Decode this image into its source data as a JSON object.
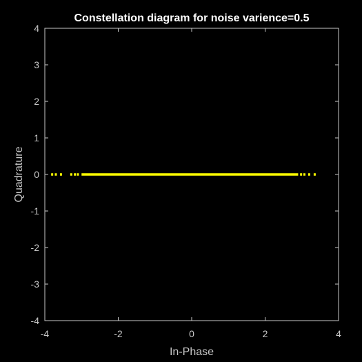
{
  "chart_data": {
    "type": "scatter",
    "title": "Constellation diagram for noise varience=0.5",
    "xlabel": "In-Phase",
    "ylabel": "Quadrature",
    "xlim": [
      -4,
      4
    ],
    "ylim": [
      -4,
      4
    ],
    "xticks": [
      -4,
      -2,
      0,
      2,
      4
    ],
    "yticks": [
      4,
      3,
      2,
      1,
      0,
      -1,
      -2,
      -3,
      -4
    ],
    "grid": false,
    "legend": "none",
    "colors": {
      "background": "#000000",
      "axes": "#c8c8c8",
      "title": "#ffffff",
      "marker": "#ffff00"
    },
    "series": [
      {
        "dense_range": [
          -3.0,
          2.9
        ],
        "isolated_x": [
          -3.8,
          -3.7,
          -3.56,
          -3.28,
          -3.18,
          -3.1,
          2.98,
          3.07,
          3.2,
          3.35
        ],
        "y": 0
      }
    ]
  }
}
